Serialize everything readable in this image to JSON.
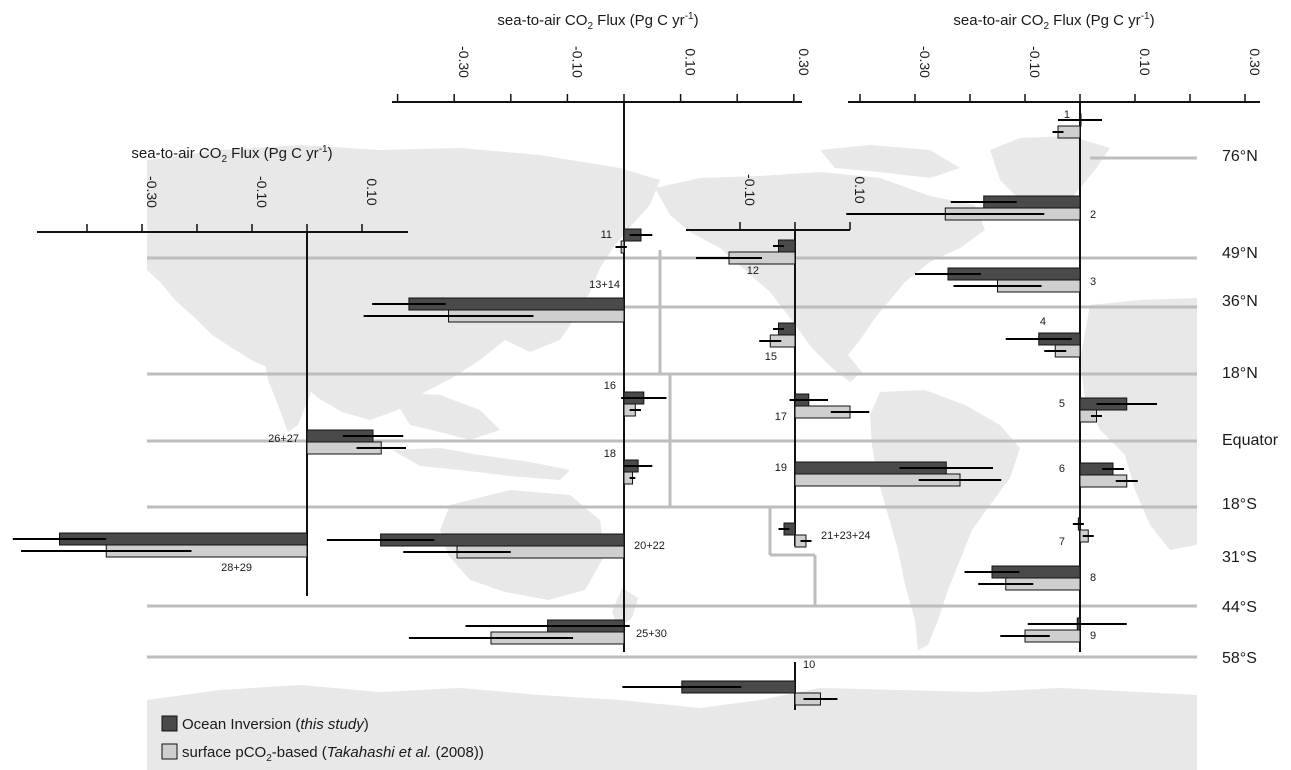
{
  "colors": {
    "inversion": "#4a4a4a",
    "pco2": "#cfcfcf",
    "land": "#e8e8e8",
    "boundary": "#bdbdbd",
    "axis": "#111111"
  },
  "legend": {
    "inversion": {
      "label_pre": "Ocean Inversion (",
      "label_em": "this study",
      "label_post": ")"
    },
    "pco2": {
      "label_pre": "surface pCO",
      "label_sub": "2",
      "label_mid": "-based (",
      "label_em": "Takahashi et al.",
      "label_post": " (2008))"
    }
  },
  "latitude_labels": [
    "76°N",
    "49°N",
    "36°N",
    "18°N",
    "Equator",
    "18°S",
    "31°S",
    "44°S",
    "58°S"
  ],
  "chart_data": {
    "type": "bar",
    "orientation": "horizontal",
    "axis_title": {
      "main": "sea-to-air CO",
      "sub": "2",
      "mid": " Flux (Pg C yr",
      "sup": "-1",
      "post": ")"
    },
    "series_names": [
      "Ocean Inversion (this study)",
      "surface pCO2-based (Takahashi et al. (2008))"
    ],
    "axes": [
      {
        "id": "indian",
        "range": [
          -0.5,
          0.18
        ],
        "ticks": [
          -0.3,
          -0.1,
          0.1
        ],
        "tick_labels": [
          "-0.30",
          "-0.10",
          "0.10"
        ]
      },
      {
        "id": "pacific-west",
        "range": [
          -0.42,
          0.32
        ],
        "ticks": [
          -0.3,
          -0.1,
          0.1,
          0.3
        ],
        "tick_labels": [
          "-0.30",
          "-0.10",
          "0.10",
          "0.30"
        ]
      },
      {
        "id": "pacific-east",
        "range": [
          -0.2,
          0.1
        ],
        "ticks": [
          -0.1,
          0.1
        ],
        "tick_labels": [
          "-0.10",
          "0.10"
        ]
      },
      {
        "id": "atlantic",
        "range": [
          -0.42,
          0.32
        ],
        "ticks": [
          -0.3,
          -0.1,
          0.1,
          0.3
        ],
        "tick_labels": [
          "-0.30",
          "-0.10",
          "0.10",
          "0.30"
        ]
      }
    ],
    "regions": [
      {
        "label": "1",
        "axis": "atlantic",
        "inversion": 0.0,
        "inversion_err": 0.04,
        "pco2": -0.04,
        "pco2_err": 0.01
      },
      {
        "label": "2",
        "axis": "atlantic",
        "inversion": -0.175,
        "inversion_err": 0.06,
        "pco2": -0.245,
        "pco2_err": 0.18
      },
      {
        "label": "3",
        "axis": "atlantic",
        "inversion": -0.24,
        "inversion_err": 0.06,
        "pco2": -0.15,
        "pco2_err": 0.08
      },
      {
        "label": "4",
        "axis": "atlantic",
        "inversion": -0.075,
        "inversion_err": 0.06,
        "pco2": -0.045,
        "pco2_err": 0.02
      },
      {
        "label": "5",
        "axis": "atlantic",
        "inversion": 0.085,
        "inversion_err": 0.055,
        "pco2": 0.03,
        "pco2_err": 0.01
      },
      {
        "label": "6",
        "axis": "atlantic",
        "inversion": 0.06,
        "inversion_err": 0.02,
        "pco2": 0.085,
        "pco2_err": 0.02
      },
      {
        "label": "7",
        "axis": "atlantic",
        "inversion": -0.003,
        "inversion_err": 0.01,
        "pco2": 0.015,
        "pco2_err": 0.01
      },
      {
        "label": "8",
        "axis": "atlantic",
        "inversion": -0.16,
        "inversion_err": 0.05,
        "pco2": -0.135,
        "pco2_err": 0.05
      },
      {
        "label": "9",
        "axis": "atlantic",
        "inversion": -0.005,
        "inversion_err": 0.09,
        "pco2": -0.1,
        "pco2_err": 0.045
      },
      {
        "label": "10",
        "axis": "pacific-west",
        "inversion": -0.2,
        "inversion_err": 0.105,
        "pco2": 0.045,
        "pco2_err": 0.03
      },
      {
        "label": "11",
        "axis": "pacific-west",
        "inversion": 0.03,
        "inversion_err": 0.02,
        "pco2": -0.005,
        "pco2_err": 0.01
      },
      {
        "label": "12",
        "axis": "pacific-east",
        "inversion": -0.03,
        "inversion_err": 0.01,
        "pco2": -0.12,
        "pco2_err": 0.06
      },
      {
        "label": "13+14",
        "axis": "pacific-west",
        "inversion": -0.38,
        "inversion_err": 0.065,
        "pco2": -0.31,
        "pco2_err": 0.15
      },
      {
        "label": "15",
        "axis": "pacific-east",
        "inversion": -0.03,
        "inversion_err": 0.01,
        "pco2": -0.045,
        "pco2_err": 0.02
      },
      {
        "label": "16",
        "axis": "pacific-west",
        "inversion": 0.035,
        "inversion_err": 0.04,
        "pco2": 0.02,
        "pco2_err": 0.01
      },
      {
        "label": "17",
        "axis": "pacific-east",
        "inversion": 0.025,
        "inversion_err": 0.035,
        "pco2": 0.1,
        "pco2_err": 0.035
      },
      {
        "label": "18",
        "axis": "pacific-west",
        "inversion": 0.025,
        "inversion_err": 0.025,
        "pco2": 0.015,
        "pco2_err": 0.005
      },
      {
        "label": "19",
        "axis": "pacific-east",
        "inversion": 0.275,
        "inversion_err": 0.085,
        "pco2": 0.3,
        "pco2_err": 0.075
      },
      {
        "label": "20+22",
        "axis": "pacific-west",
        "inversion": -0.43,
        "inversion_err": 0.095,
        "pco2": -0.295,
        "pco2_err": 0.095
      },
      {
        "label": "21+23+24",
        "axis": "pacific-east",
        "inversion": -0.02,
        "inversion_err": 0.01,
        "pco2": 0.02,
        "pco2_err": 0.01
      },
      {
        "label": "25+30",
        "axis": "pacific-west",
        "inversion": -0.135,
        "inversion_err": 0.145,
        "pco2": -0.235,
        "pco2_err": 0.145
      },
      {
        "label": "26+27",
        "axis": "indian",
        "inversion": 0.12,
        "inversion_err": 0.055,
        "pco2": 0.135,
        "pco2_err": 0.045
      },
      {
        "label": "28+29",
        "axis": "indian",
        "inversion": -0.45,
        "inversion_err": 0.085,
        "pco2": -0.365,
        "pco2_err": 0.155
      }
    ]
  }
}
